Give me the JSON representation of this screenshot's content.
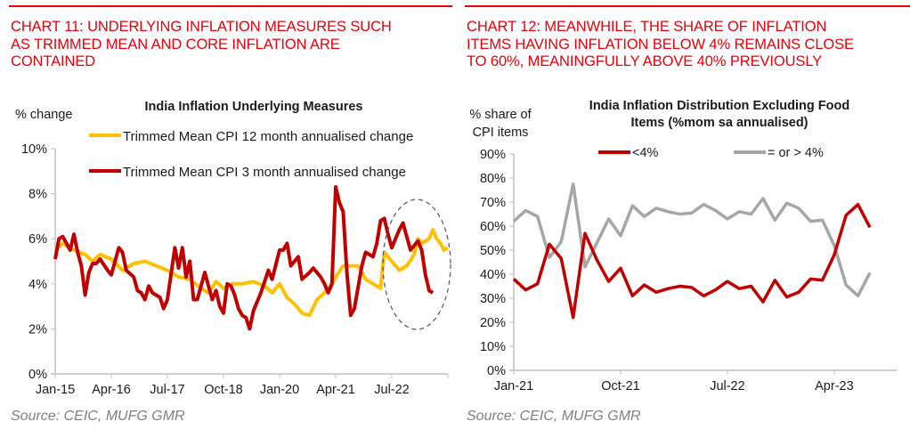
{
  "colors": {
    "heading_red": "#e8000b",
    "series_yellow": "#ffc000",
    "series_red": "#c00000",
    "series_gray": "#a6a6a6",
    "axis_gray": "#bfbfbf",
    "source_gray": "#808080",
    "annotation_blue": "#44546a"
  },
  "left_panel": {
    "heading": "CHART 11: UNDERLYING INFLATION MEASURES SUCH AS TRIMMED MEAN AND CORE INFLATION ARE CONTAINED",
    "heading_lines": [
      "CHART 11: UNDERLYING INFLATION MEASURES SUCH",
      "AS TRIMMED MEAN AND CORE INFLATION ARE",
      "CONTAINED"
    ],
    "source": "Source: CEIC, MUFG GMR"
  },
  "right_panel": {
    "heading": "CHART 12: MEANWHILE, THE SHARE OF INFLATION ITEMS HAVING INFLATION BELOW 4% REMAINS CLOSE TO 60%, MEANINGFULLY ABOVE 40% PREVIOUSLY",
    "heading_lines": [
      "CHART 12: MEANWHILE, THE SHARE OF INFLATION",
      "ITEMS HAVING INFLATION BELOW 4% REMAINS CLOSE",
      "TO 60%, MEANINGFULLY ABOVE 40% PREVIOUSLY"
    ],
    "source": "Source: CEIC, MUFG GMR"
  },
  "chart_data": [
    {
      "type": "line",
      "title": "India Inflation Underlying Measures",
      "ylabel": "% change",
      "xlabel": "",
      "ylim": [
        0,
        10
      ],
      "yticks": [
        "0%",
        "2%",
        "4%",
        "6%",
        "8%",
        "10%"
      ],
      "xticks": [
        "Jan-15",
        "Apr-16",
        "Jul-17",
        "Oct-18",
        "Jan-20",
        "Apr-21",
        "Jul-22"
      ],
      "x_start": "Jan-15",
      "x_unit": "month",
      "x_tick_interval_months": 15,
      "x_total_months": 105,
      "legend": [
        "Trimmed Mean CPI 12 month annualised change",
        "Trimmed Mean CPI 3 month annualised change"
      ],
      "legend_position": "top",
      "annotation": "dashed ellipse highlighting latest period (mid-2022 to 2023)",
      "series": [
        {
          "name": "Trimmed Mean CPI 12 month annualised change",
          "color": "#ffc000",
          "points": [
            [
              0,
              5.5
            ],
            [
              2,
              5.8
            ],
            [
              5,
              5.5
            ],
            [
              8,
              5.3
            ],
            [
              10,
              5.0
            ],
            [
              12,
              5.3
            ],
            [
              15,
              5.1
            ],
            [
              18,
              4.6
            ],
            [
              21,
              4.9
            ],
            [
              24,
              5.0
            ],
            [
              27,
              4.8
            ],
            [
              30,
              4.6
            ],
            [
              33,
              4.3
            ],
            [
              36,
              4.2
            ],
            [
              39,
              3.8
            ],
            [
              41,
              3.6
            ],
            [
              43,
              4.1
            ],
            [
              45,
              3.8
            ],
            [
              47,
              4.0
            ],
            [
              50,
              4.0
            ],
            [
              53,
              4.1
            ],
            [
              56,
              3.9
            ],
            [
              58,
              3.6
            ],
            [
              60,
              4.0
            ],
            [
              62,
              3.4
            ],
            [
              64,
              3.1
            ],
            [
              66,
              2.7
            ],
            [
              68,
              2.6
            ],
            [
              70,
              3.3
            ],
            [
              72,
              3.6
            ],
            [
              74,
              4.0
            ],
            [
              75,
              4.3
            ],
            [
              77,
              4.8
            ],
            [
              79,
              4.8
            ],
            [
              81,
              4.8
            ],
            [
              83,
              4.2
            ],
            [
              85,
              4.0
            ],
            [
              87,
              3.8
            ],
            [
              88,
              5.4
            ],
            [
              90,
              5.0
            ],
            [
              92,
              4.6
            ],
            [
              94,
              4.8
            ],
            [
              96,
              5.3
            ],
            [
              97,
              6.0
            ],
            [
              98,
              5.8
            ],
            [
              100,
              6.0
            ],
            [
              101,
              6.4
            ],
            [
              102,
              6.0
            ],
            [
              103,
              5.8
            ],
            [
              104,
              5.5
            ],
            [
              105,
              5.6
            ]
          ]
        },
        {
          "name": "Trimmed Mean CPI 3 month annualised change",
          "color": "#c00000",
          "points": [
            [
              0,
              5.1
            ],
            [
              1,
              6.0
            ],
            [
              2,
              6.1
            ],
            [
              4,
              5.5
            ],
            [
              5,
              6.2
            ],
            [
              6,
              5.4
            ],
            [
              7,
              4.8
            ],
            [
              8,
              3.5
            ],
            [
              9,
              4.5
            ],
            [
              10,
              4.9
            ],
            [
              11,
              4.9
            ],
            [
              12,
              5.1
            ],
            [
              14,
              4.6
            ],
            [
              15,
              4.4
            ],
            [
              17,
              5.6
            ],
            [
              18,
              5.4
            ],
            [
              19,
              4.6
            ],
            [
              21,
              4.3
            ],
            [
              22,
              3.7
            ],
            [
              23,
              3.6
            ],
            [
              24,
              3.3
            ],
            [
              25,
              3.9
            ],
            [
              26,
              3.6
            ],
            [
              28,
              3.4
            ],
            [
              29,
              2.9
            ],
            [
              30,
              3.3
            ],
            [
              32,
              5.6
            ],
            [
              33,
              4.7
            ],
            [
              34,
              5.6
            ],
            [
              35,
              4.3
            ],
            [
              36,
              5.0
            ],
            [
              37,
              3.3
            ],
            [
              38,
              3.3
            ],
            [
              40,
              4.5
            ],
            [
              42,
              3.3
            ],
            [
              43,
              3.7
            ],
            [
              44,
              3.0
            ],
            [
              45,
              2.7
            ],
            [
              46,
              4.0
            ],
            [
              47,
              3.9
            ],
            [
              48,
              3.5
            ],
            [
              49,
              2.9
            ],
            [
              50,
              2.6
            ],
            [
              51,
              2.5
            ],
            [
              52,
              2.0
            ],
            [
              53,
              2.8
            ],
            [
              55,
              3.6
            ],
            [
              57,
              4.6
            ],
            [
              58,
              4.2
            ],
            [
              60,
              5.5
            ],
            [
              61,
              5.5
            ],
            [
              62,
              5.8
            ],
            [
              63,
              4.8
            ],
            [
              65,
              5.2
            ],
            [
              66,
              4.2
            ],
            [
              68,
              4.5
            ],
            [
              69,
              4.7
            ],
            [
              71,
              4.3
            ],
            [
              72,
              4.0
            ],
            [
              73,
              3.6
            ],
            [
              74,
              4.0
            ],
            [
              75,
              8.3
            ],
            [
              76,
              7.6
            ],
            [
              77,
              7.2
            ],
            [
              78,
              4.5
            ],
            [
              79,
              2.6
            ],
            [
              80,
              2.9
            ],
            [
              82,
              4.8
            ],
            [
              83,
              5.4
            ],
            [
              84,
              5.3
            ],
            [
              85,
              5.2
            ],
            [
              86,
              5.8
            ],
            [
              87,
              6.8
            ],
            [
              88,
              6.9
            ],
            [
              89,
              6.2
            ],
            [
              90,
              5.6
            ],
            [
              92,
              6.4
            ],
            [
              93,
              6.7
            ],
            [
              95,
              5.5
            ],
            [
              97,
              5.9
            ],
            [
              98,
              5.5
            ],
            [
              99,
              4.4
            ],
            [
              100,
              3.7
            ],
            [
              101,
              3.6
            ]
          ]
        }
      ]
    },
    {
      "type": "line",
      "title": "India Inflation Distribution Excluding Food Items (%mom sa annualised)",
      "title_lines": [
        "India Inflation Distribution Excluding Food",
        "Items (%mom sa annualised)"
      ],
      "ylabel": "% share of CPI items",
      "ylabel_lines": [
        "% share of",
        "CPI items"
      ],
      "xlabel": "",
      "ylim": [
        0,
        90
      ],
      "yticks": [
        "0%",
        "10%",
        "20%",
        "30%",
        "40%",
        "50%",
        "60%",
        "70%",
        "80%",
        "90%"
      ],
      "xticks": [
        "Jan-21",
        "Oct-21",
        "Jul-22",
        "Apr-23"
      ],
      "x_start": "Jan-21",
      "x_unit": "month",
      "x_tick_interval_months": 9,
      "x_total_months": 36,
      "legend": [
        "<4%",
        "= or > 4%"
      ],
      "legend_position": "top",
      "series": [
        {
          "name": "<4%",
          "color": "#c00000",
          "values": [
            38,
            33.5,
            36,
            52.5,
            46.5,
            22,
            57,
            46,
            37,
            42.5,
            31,
            35.5,
            32.5,
            34,
            35,
            34.5,
            31,
            33.5,
            37,
            34,
            35,
            28.5,
            37.5,
            30.5,
            32.5,
            38,
            37.5,
            48,
            64.5,
            69,
            59.5
          ]
        },
        {
          "name": "= or > 4%",
          "color": "#a6a6a6",
          "values": [
            62,
            66.5,
            64,
            47,
            53.5,
            77.5,
            43,
            53,
            63,
            56,
            68.5,
            64,
            67.5,
            66,
            65,
            65.5,
            69,
            66.5,
            63,
            66,
            65,
            71.5,
            62.5,
            69.5,
            67.5,
            62,
            62.5,
            52,
            35.5,
            31,
            40.5
          ]
        }
      ]
    }
  ]
}
